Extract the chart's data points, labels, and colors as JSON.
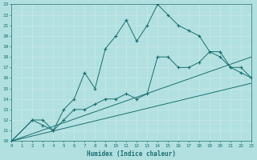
{
  "xlabel": "Humidex (Indice chaleur)",
  "bg_color": "#b2e0e0",
  "line_color": "#1a7070",
  "grid_color": "#c8e8e8",
  "xlim": [
    0,
    23
  ],
  "ylim": [
    10,
    23
  ],
  "xticks": [
    0,
    1,
    2,
    3,
    4,
    5,
    6,
    7,
    8,
    9,
    10,
    11,
    12,
    13,
    14,
    15,
    16,
    17,
    18,
    19,
    20,
    21,
    22,
    23
  ],
  "yticks": [
    10,
    11,
    12,
    13,
    14,
    15,
    16,
    17,
    18,
    19,
    20,
    21,
    22,
    23
  ],
  "curve1_x": [
    0,
    2,
    3,
    4,
    5,
    6,
    7,
    8,
    9,
    10,
    11,
    12,
    13,
    14,
    15,
    16,
    17,
    18,
    19,
    20,
    21,
    22,
    23
  ],
  "curve1_y": [
    10,
    12,
    12,
    11,
    13,
    14,
    16.5,
    15,
    18.8,
    20,
    21.5,
    19.5,
    21,
    23,
    22,
    21,
    20.5,
    20,
    18.5,
    18,
    17,
    16.5,
    16
  ],
  "curve2_x": [
    0,
    2,
    3,
    4,
    5,
    6,
    7,
    8,
    9,
    10,
    11,
    12,
    13,
    14,
    15,
    16,
    17,
    18,
    19,
    20,
    21,
    22,
    23
  ],
  "curve2_y": [
    10,
    12,
    11.5,
    11,
    12,
    13,
    13,
    13.5,
    14,
    14,
    14.5,
    14,
    14.5,
    18,
    18,
    17,
    17,
    17.5,
    18.5,
    18.5,
    17,
    17,
    16
  ],
  "line1_x": [
    0,
    23
  ],
  "line1_y": [
    10,
    18
  ],
  "line2_x": [
    0,
    23
  ],
  "line2_y": [
    10,
    15.5
  ]
}
